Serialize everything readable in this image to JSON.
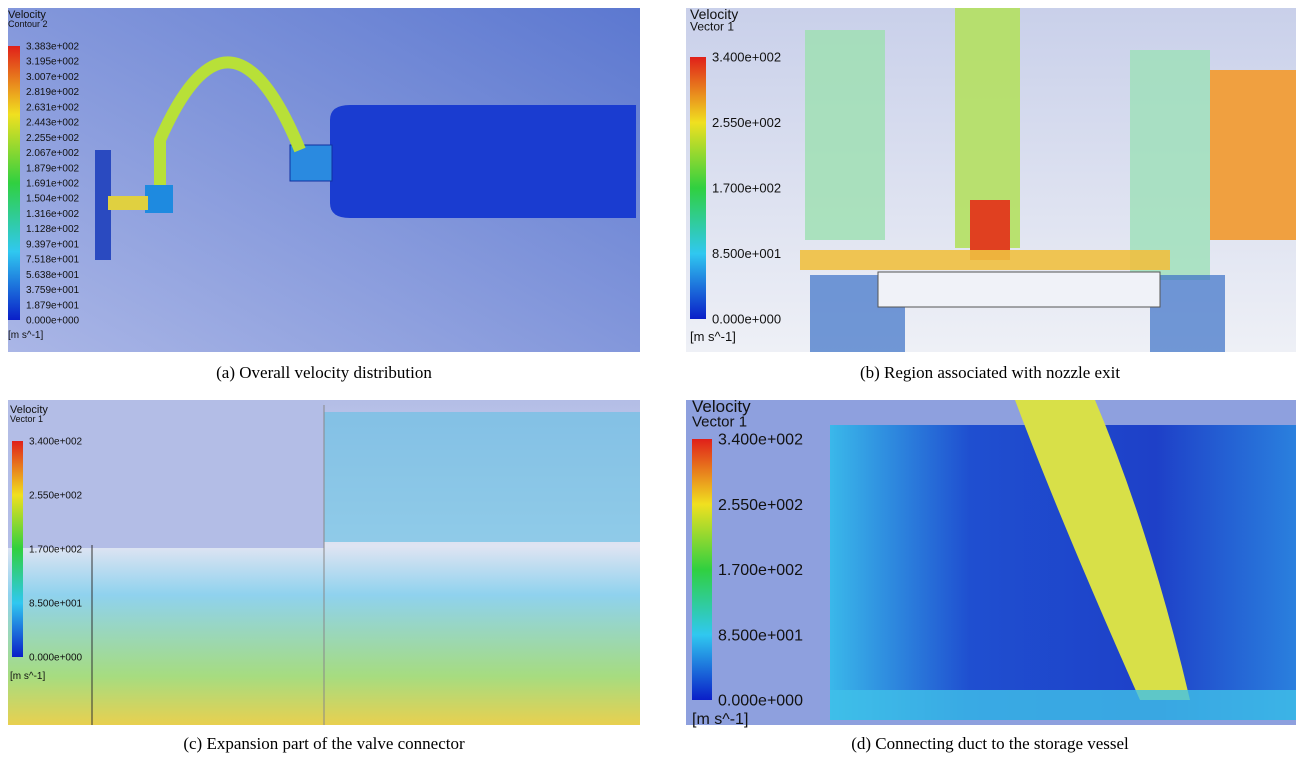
{
  "panels": [
    {
      "caption": "(a) Overall velocity distribution",
      "legend": {
        "title": "Velocity",
        "subtitle": "Contour 2",
        "labels": [
          "3.383e+002",
          "3.195e+002",
          "3.007e+002",
          "2.819e+002",
          "2.631e+002",
          "2.443e+002",
          "2.255e+002",
          "2.067e+002",
          "1.879e+002",
          "1.691e+002",
          "1.504e+002",
          "1.316e+002",
          "1.128e+002",
          "9.397e+001",
          "7.518e+001",
          "5.638e+001",
          "3.759e+001",
          "1.879e+001",
          "0.000e+000"
        ],
        "unit": "[m s^-1]"
      }
    },
    {
      "caption": "(b) Region associated with nozzle exit",
      "legend": {
        "title": "Velocity",
        "subtitle": "Vector 1",
        "labels": [
          "3.400e+002",
          "2.550e+002",
          "1.700e+002",
          "8.500e+001",
          "0.000e+000"
        ],
        "unit": "[m s^-1]"
      }
    },
    {
      "caption": "(c) Expansion part of the valve connector",
      "legend": {
        "title": "Velocity",
        "subtitle": "Vector 1",
        "labels": [
          "3.400e+002",
          "2.550e+002",
          "1.700e+002",
          "8.500e+001",
          "0.000e+000"
        ],
        "unit": "[m s^-1]"
      }
    },
    {
      "caption": "(d) Connecting duct to the storage vessel",
      "legend": {
        "title": "Velocity",
        "subtitle": "Vector 1",
        "labels": [
          "3.400e+002",
          "2.550e+002",
          "1.700e+002",
          "8.500e+001",
          "0.000e+000"
        ],
        "unit": "[m s^-1]"
      }
    }
  ]
}
